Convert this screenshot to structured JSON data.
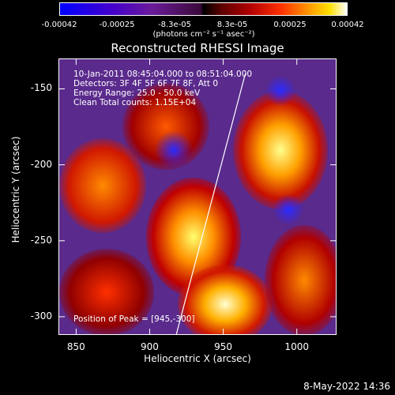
{
  "colorbar": {
    "ticks": [
      "-0.00042",
      "-0.00025",
      "-8.3e-05",
      "8.3e-05",
      "0.00025",
      "0.00042"
    ],
    "units": "(photons cm⁻² s⁻¹ asec⁻²)"
  },
  "chart_data": {
    "type": "heatmap",
    "title": "Reconstructed RHESSI Image",
    "xlabel": "Heliocentric X (arcsec)",
    "ylabel": "Heliocentric Y (arcsec)",
    "xlim": [
      838,
      1027
    ],
    "ylim": [
      -312,
      -130
    ],
    "xticks": [
      "850",
      "900",
      "950",
      "1000"
    ],
    "yticks": [
      "-150",
      "-200",
      "-250",
      "-300"
    ],
    "colormap_range": [
      -0.00042,
      0.00042
    ],
    "annotations": [
      "10-Jan-2011 08:45:04.000 to 08:51:04.000",
      "Detectors: 3F 4F 5F 6F 7F 8F, Att 0",
      "Energy Range: 25.0 - 50.0 keV",
      "Clean    Total counts: 1.15E+04"
    ],
    "peak_label": "Position of Peak = [945,-300]",
    "limb_line": [
      [
        918,
        -312
      ],
      [
        965,
        -140
      ]
    ]
  },
  "timestamp": "8-May-2022 14:36"
}
